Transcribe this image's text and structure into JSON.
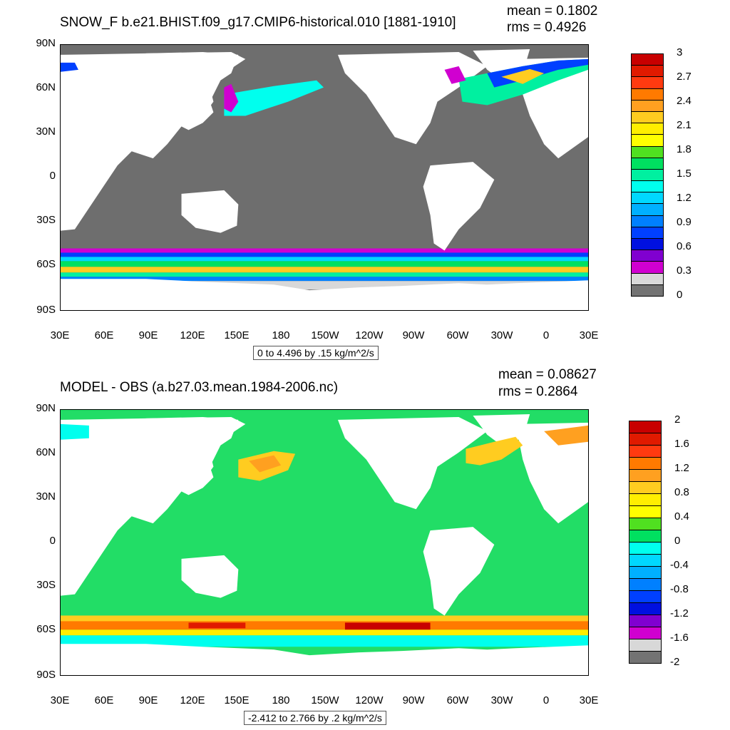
{
  "panels": [
    {
      "title": "SNOW_F b.e21.BHIST.f09_g17.CMIP6-historical.010 [1881-1910]",
      "mean_label": "mean = 0.1802",
      "rms_label": "rms = 0.4926",
      "range_label": "0 to 4.496 by .15 kg/m^2/s",
      "lat_ticks": [
        "90N",
        "60N",
        "30N",
        "0",
        "30S",
        "60S",
        "90S"
      ],
      "lon_ticks": [
        "30E",
        "60E",
        "90E",
        "120E",
        "150E",
        "180",
        "150W",
        "120W",
        "90W",
        "60W",
        "30W",
        "0",
        "30E"
      ],
      "colorbar_labels": [
        "3",
        "2.7",
        "2.4",
        "2.1",
        "1.8",
        "1.5",
        "1.2",
        "0.9",
        "0.6",
        "0.3",
        "0"
      ],
      "colorbar_colors": [
        "#c80000",
        "#e01a00",
        "#ff3a10",
        "#ff7a00",
        "#ffa020",
        "#ffcc20",
        "#ffee00",
        "#ffff00",
        "#50e020",
        "#00e060",
        "#00f0a0",
        "#00ffee",
        "#00d8ff",
        "#00b0ff",
        "#0080ff",
        "#0040ff",
        "#0010e0",
        "#8000d0",
        "#d000d0",
        "#d8d8d8",
        "#737373"
      ]
    },
    {
      "title": "MODEL - OBS (a.b27.03.mean.1984-2006.nc)",
      "mean_label": "mean = 0.08627",
      "rms_label": "rms = 0.2864",
      "range_label": "-2.412 to 2.766 by .2 kg/m^2/s",
      "lat_ticks": [
        "90N",
        "60N",
        "30N",
        "0",
        "30S",
        "60S",
        "90S"
      ],
      "lon_ticks": [
        "30E",
        "60E",
        "90E",
        "120E",
        "150E",
        "180",
        "150W",
        "120W",
        "90W",
        "60W",
        "30W",
        "0",
        "30E"
      ],
      "colorbar_labels": [
        "2",
        "1.6",
        "1.2",
        "0.8",
        "0.4",
        "0",
        "-0.4",
        "-0.8",
        "-1.2",
        "-1.6",
        "-2"
      ],
      "colorbar_colors": [
        "#c80000",
        "#e01a00",
        "#ff3a10",
        "#ff7a00",
        "#ffa020",
        "#ffcc20",
        "#ffee00",
        "#ffff00",
        "#50e020",
        "#00e060",
        "#00ffee",
        "#00d8ff",
        "#00b0ff",
        "#0080ff",
        "#0040ff",
        "#0010e0",
        "#8000d0",
        "#d000d0",
        "#d8d8d8",
        "#737373"
      ]
    }
  ],
  "colors": {
    "land": "#ffffff",
    "ocean_low": "#6e6e6e",
    "ocean_diff": "#22dd66"
  }
}
